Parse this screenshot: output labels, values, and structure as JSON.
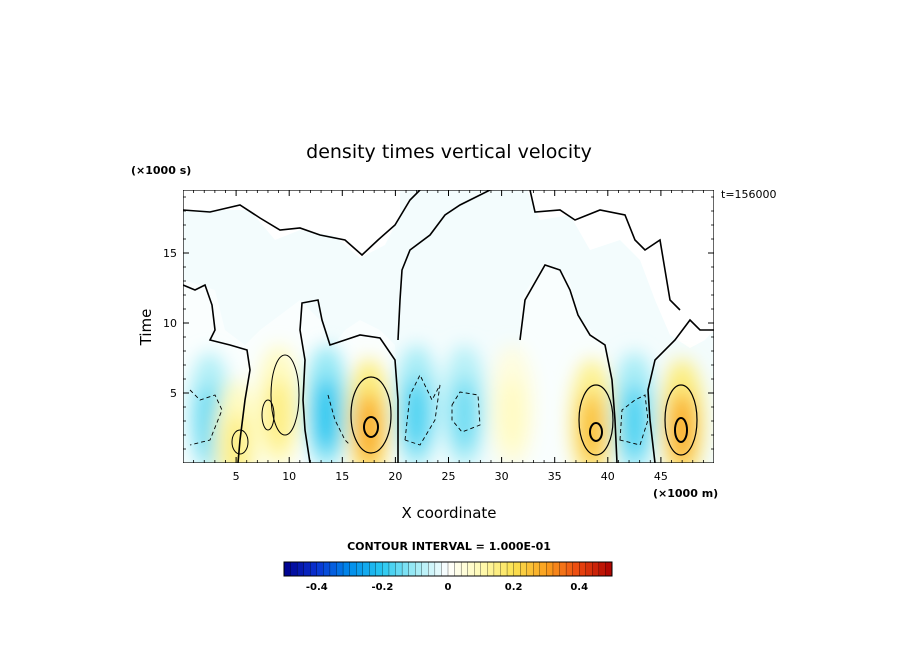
{
  "chart_data": {
    "type": "heatmap",
    "title": "density times vertical velocity",
    "xlabel": "X coordinate",
    "ylabel": "Time",
    "x_unit": "(×1000 m)",
    "y_unit": "(×1000 s)",
    "time_label": "t=156000",
    "xlim": [
      0,
      50
    ],
    "ylim": [
      0,
      19.5
    ],
    "x_ticks": [
      5,
      10,
      15,
      20,
      25,
      30,
      35,
      40,
      45
    ],
    "y_ticks": [
      5,
      10,
      15
    ],
    "contour_interval_label": "CONTOUR INTERVAL = 1.000E-01",
    "colorbar": {
      "range": [
        -0.5,
        0.5
      ],
      "ticks": [
        -0.4,
        -0.2,
        0,
        0.2,
        0.4
      ],
      "tick_labels": [
        "-0.4",
        "-0.2",
        "0",
        "0.2",
        "0.4"
      ]
    },
    "features": [
      {
        "x": 2.5,
        "y": 3.5,
        "value": -0.15
      },
      {
        "x": 5.0,
        "y": 1.5,
        "value": 0.15
      },
      {
        "x": 9.0,
        "y": 4.0,
        "value": 0.15
      },
      {
        "x": 13.5,
        "y": 4.0,
        "value": -0.2
      },
      {
        "x": 17.5,
        "y": 3.0,
        "value": 0.28
      },
      {
        "x": 22.0,
        "y": 4.0,
        "value": -0.17
      },
      {
        "x": 26.5,
        "y": 4.0,
        "value": -0.14
      },
      {
        "x": 31.0,
        "y": 4.0,
        "value": 0.08
      },
      {
        "x": 38.5,
        "y": 3.0,
        "value": 0.25
      },
      {
        "x": 42.5,
        "y": 3.5,
        "value": -0.17
      },
      {
        "x": 47.0,
        "y": 3.0,
        "value": 0.28
      }
    ]
  }
}
